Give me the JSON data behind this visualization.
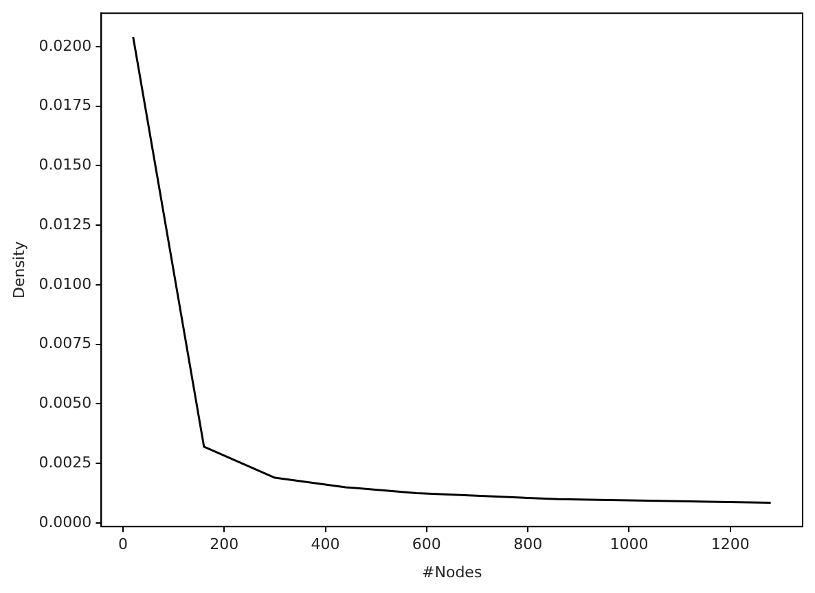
{
  "chart_data": {
    "type": "line",
    "xlabel": "#Nodes",
    "ylabel": "Density",
    "x": [
      20,
      160,
      300,
      440,
      580,
      860,
      1280
    ],
    "series": [
      {
        "color": "#000000",
        "values": [
          0.0204,
          0.0032,
          0.0019,
          0.0015,
          0.00125,
          0.001,
          0.00085
        ]
      }
    ],
    "xlim": [
      -43,
      1343
    ],
    "xticks": [
      0,
      200,
      400,
      600,
      800,
      1000,
      1200
    ],
    "ylim": [
      -0.00015,
      0.0214
    ],
    "yticks": [
      {
        "value": 0,
        "label": "0.0000"
      },
      {
        "value": 0.0025,
        "label": "0.0025"
      },
      {
        "value": 0.005,
        "label": "0.0050"
      },
      {
        "value": 0.0075,
        "label": "0.0075"
      },
      {
        "value": 0.01,
        "label": "0.0100"
      },
      {
        "value": 0.0125,
        "label": "0.0125"
      },
      {
        "value": 0.015,
        "label": "0.0150"
      },
      {
        "value": 0.0175,
        "label": "0.0175"
      },
      {
        "value": 0.02,
        "label": "0.0200"
      }
    ],
    "grid": false,
    "legend": false,
    "marker": "none",
    "line_style": "solid"
  }
}
